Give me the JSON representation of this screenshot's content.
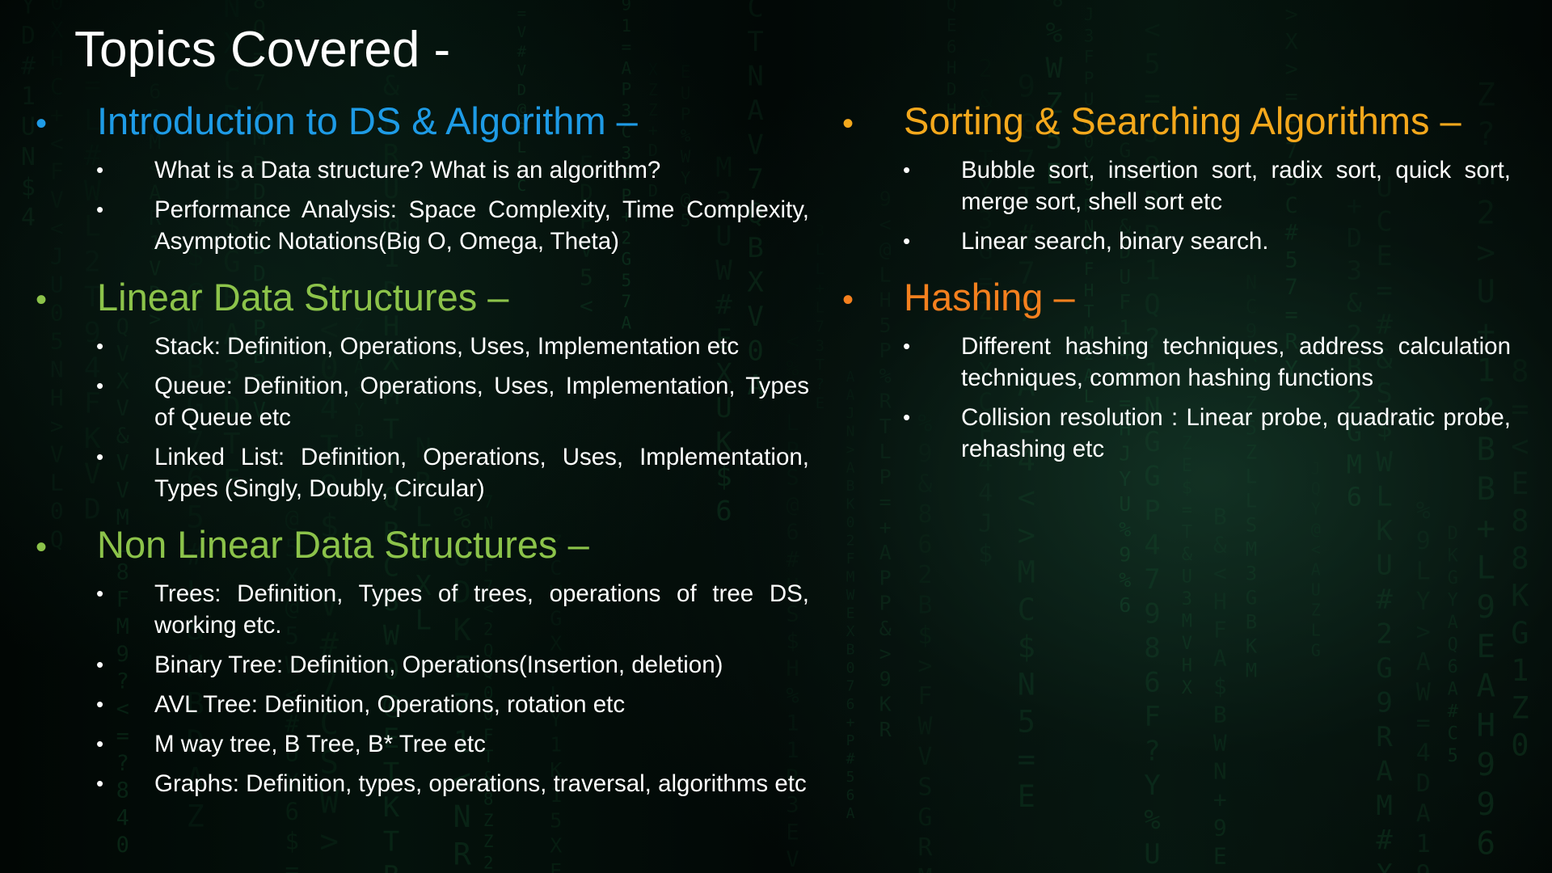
{
  "slide": {
    "title": "Topics Covered -",
    "colors": {
      "blue_heading": "#1e9be6",
      "green_heading": "#8cc34a",
      "gold_heading": "#f4a81c",
      "orange_heading": "#f5801e",
      "text": "#ffffff",
      "background": "#020806",
      "rain": "#1f7a43"
    },
    "left_column": [
      {
        "heading": "Introduction to DS & Algorithm –",
        "color": "#1e9be6",
        "items": [
          "What is a Data structure? What is an algorithm?",
          "Performance Analysis: Space Complexity, Time Complexity, Asymptotic Notations(Big O, Omega, Theta)"
        ]
      },
      {
        "heading": "Linear Data Structures –",
        "color": "#8cc34a",
        "items": [
          "Stack: Definition, Operations, Uses, Implementation etc",
          "Queue: Definition, Operations, Uses, Implementation, Types of Queue etc",
          "Linked List: Definition, Operations, Uses, Implementation, Types (Singly, Doubly, Circular)"
        ]
      },
      {
        "heading": "Non Linear Data Structures –",
        "color": "#8cc34a",
        "items": [
          "Trees: Definition, Types of trees, operations of tree DS, working etc.",
          "Binary Tree: Definition, Operations(Insertion, deletion)",
          "AVL Tree: Definition, Operations, rotation etc",
          "M way tree, B Tree, B* Tree etc",
          "Graphs: Definition, types, operations, traversal, algorithms etc"
        ]
      }
    ],
    "right_column": [
      {
        "heading": "Sorting & Searching Algorithms –",
        "color": "#f4a81c",
        "items": [
          "Bubble sort, insertion sort, radix sort, quick sort, merge sort, shell sort etc",
          "Linear search, binary search."
        ]
      },
      {
        "heading": "Hashing –",
        "color": "#f5801e",
        "items": [
          "Different hashing techniques, address calculation techniques, common hashing functions",
          "Collision resolution : Linear probe, quadratic probe, rehashing etc"
        ]
      }
    ]
  }
}
